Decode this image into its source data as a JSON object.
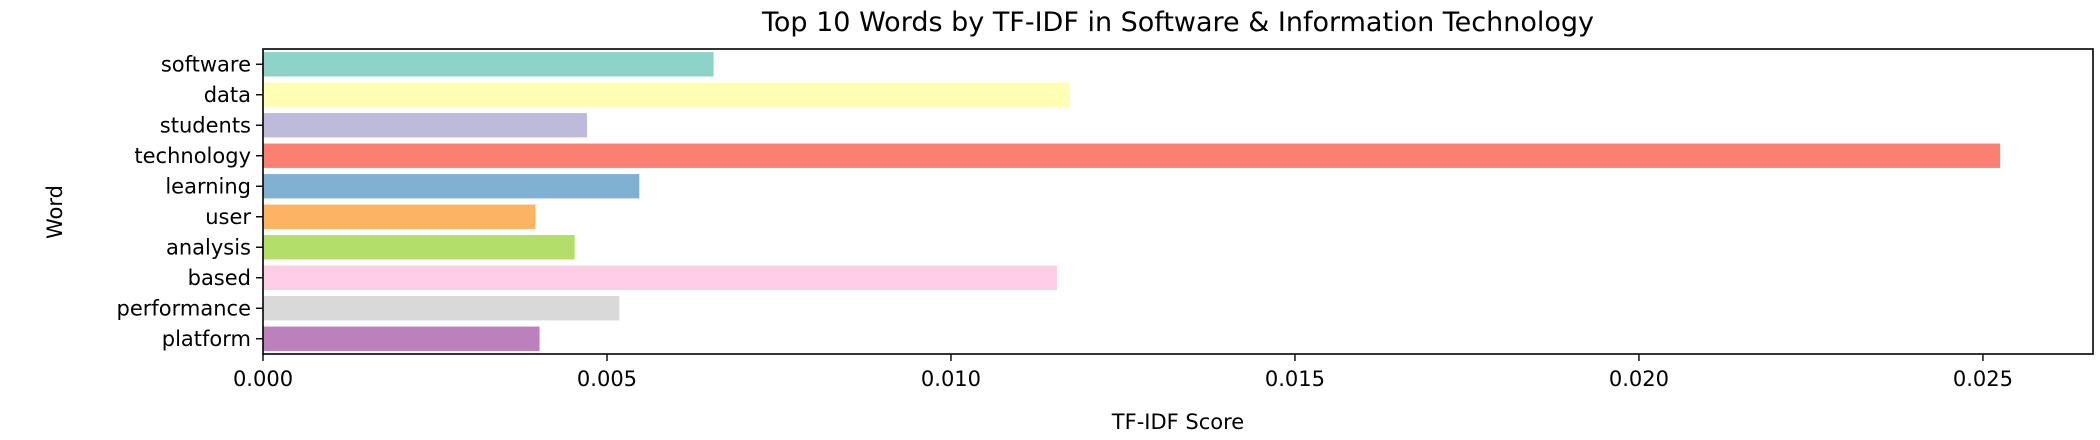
{
  "chart_data": {
    "type": "bar",
    "orientation": "horizontal",
    "title": "Top 10 Words by TF-IDF in Software & Information Technology",
    "xlabel": "TF-IDF Score",
    "ylabel": "Word",
    "categories": [
      "software",
      "data",
      "students",
      "technology",
      "learning",
      "user",
      "analysis",
      "based",
      "performance",
      "platform"
    ],
    "values": [
      0.00655,
      0.01173,
      0.00471,
      0.02525,
      0.00547,
      0.00396,
      0.00453,
      0.01154,
      0.00518,
      0.00402
    ],
    "colors": [
      "#8dd3c7",
      "#ffffb3",
      "#bebada",
      "#fb8072",
      "#80b1d3",
      "#fdb462",
      "#b3de69",
      "#fccde5",
      "#d9d9d9",
      "#bc80bd"
    ],
    "xlim": [
      0,
      0.0266
    ],
    "xticks": [
      0.0,
      0.005,
      0.01,
      0.015,
      0.02,
      0.025
    ],
    "xtick_labels": [
      "0.000",
      "0.005",
      "0.010",
      "0.015",
      "0.020",
      "0.025"
    ],
    "grid": false,
    "legend": "none"
  }
}
